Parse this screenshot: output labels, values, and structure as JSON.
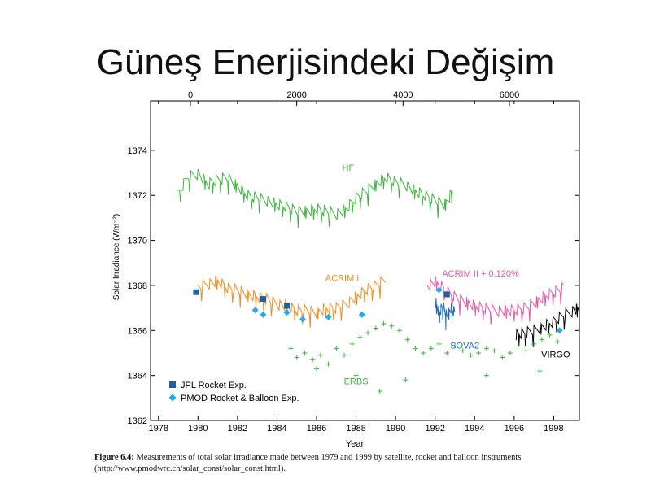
{
  "slide": {
    "title": "Güneş Enerjisindeki Değişim"
  },
  "caption": {
    "label": "Figure 6.4:",
    "text": " Measurements of total solar irradiance made between 1979 and 1999 by satellite, rocket and balloon instruments",
    "source": "(http://www.pmodwrc.ch/solar_const/solar_const.html)."
  },
  "chart_data": {
    "type": "line",
    "title": "",
    "xlabel": "Year",
    "ylabel": "Solar Irradiance (Wm⁻²)",
    "xlim": [
      1977.6,
      1999.3
    ],
    "ylim": [
      1362,
      1376.2
    ],
    "x_ticks": [
      1978,
      1980,
      1982,
      1984,
      1986,
      1988,
      1990,
      1992,
      1994,
      1996,
      1998
    ],
    "y_ticks": [
      1362,
      1364,
      1366,
      1368,
      1370,
      1372,
      1374
    ],
    "top_axis": {
      "ticks": [
        0,
        2000,
        4000,
        6000
      ]
    },
    "grid": false,
    "series": [
      {
        "name": "HF",
        "color": "#3cb43c",
        "kind": "line",
        "x": [
          1978.9,
          1979.5,
          1980.0,
          1980.5,
          1981.0,
          1981.5,
          1982.0,
          1982.5,
          1983.0,
          1983.5,
          1984.0,
          1984.5,
          1985.0,
          1985.5,
          1986.0,
          1986.5,
          1987.0,
          1987.5,
          1988.0,
          1988.5,
          1989.0,
          1989.5,
          1990.0,
          1990.5,
          1991.0,
          1991.5,
          1992.0,
          1992.5,
          1992.9
        ],
        "y": [
          1372.0,
          1372.8,
          1373.0,
          1372.5,
          1372.7,
          1372.8,
          1372.4,
          1372.0,
          1371.9,
          1371.8,
          1371.6,
          1371.5,
          1371.3,
          1371.3,
          1371.4,
          1371.3,
          1371.2,
          1371.4,
          1371.9,
          1372.2,
          1372.5,
          1372.8,
          1372.6,
          1372.5,
          1372.2,
          1372.0,
          1371.8,
          1371.6,
          1372.2
        ]
      },
      {
        "name": "ACRIM I",
        "color": "#f08c1e",
        "kind": "line",
        "x": [
          1980.0,
          1980.5,
          1981.0,
          1981.5,
          1982.0,
          1982.5,
          1983.0,
          1983.5,
          1984.0,
          1984.5,
          1985.0,
          1985.5,
          1986.0,
          1986.5,
          1987.0,
          1987.5,
          1988.0,
          1988.5,
          1989.0,
          1989.5
        ],
        "y": [
          1367.9,
          1368.1,
          1368.2,
          1367.9,
          1367.8,
          1367.6,
          1367.5,
          1367.4,
          1367.2,
          1367.1,
          1366.9,
          1366.9,
          1366.8,
          1367.0,
          1367.0,
          1367.2,
          1367.5,
          1367.8,
          1368.0,
          1368.3
        ]
      },
      {
        "name": "ACRIM II + 0.120%",
        "color": "#e855a8",
        "kind": "line",
        "x": [
          1991.6,
          1992.0,
          1992.5,
          1993.0,
          1993.5,
          1994.0,
          1994.5,
          1995.0,
          1995.5,
          1996.0,
          1996.5,
          1997.0,
          1997.5,
          1998.0,
          1998.5
        ],
        "y": [
          1368.0,
          1368.2,
          1367.8,
          1367.5,
          1367.3,
          1367.1,
          1367.0,
          1366.9,
          1366.9,
          1366.9,
          1367.0,
          1367.2,
          1367.5,
          1367.7,
          1367.9
        ]
      },
      {
        "name": "SOVA2",
        "color": "#1f6fb8",
        "kind": "line",
        "x": [
          1992.0,
          1992.2,
          1992.4,
          1992.6,
          1992.8,
          1993.0
        ],
        "y": [
          1367.3,
          1366.8,
          1367.1,
          1366.6,
          1367.0,
          1366.8
        ]
      },
      {
        "name": "VIRGO",
        "color": "#000000",
        "kind": "line",
        "x": [
          1996.1,
          1996.5,
          1997.0,
          1997.5,
          1998.0,
          1998.5,
          1999.0,
          1999.3
        ],
        "y": [
          1365.8,
          1365.9,
          1366.0,
          1366.2,
          1366.4,
          1366.7,
          1366.9,
          1367.0
        ]
      },
      {
        "name": "ERBS",
        "color": "#3cb43c",
        "kind": "scatter",
        "x": [
          1984.7,
          1985.0,
          1985.4,
          1985.8,
          1986.2,
          1986.6,
          1987.0,
          1987.4,
          1987.8,
          1988.2,
          1988.6,
          1989.0,
          1989.4,
          1989.8,
          1990.2,
          1990.6,
          1991.0,
          1991.4,
          1991.8,
          1992.2,
          1992.6,
          1993.0,
          1993.4,
          1993.8,
          1994.2,
          1994.6,
          1995.0,
          1995.4,
          1995.8,
          1996.2,
          1996.6,
          1997.0,
          1997.4,
          1997.8,
          1998.2,
          1989.2,
          1990.5,
          1988.0,
          1986.0,
          1994.6,
          1997.3
        ],
        "y": [
          1365.2,
          1364.8,
          1365.0,
          1364.7,
          1364.9,
          1364.5,
          1365.2,
          1364.9,
          1365.4,
          1365.7,
          1365.9,
          1366.1,
          1366.3,
          1366.2,
          1366.0,
          1365.6,
          1365.2,
          1365.0,
          1365.2,
          1365.4,
          1365.0,
          1365.3,
          1365.1,
          1364.9,
          1365.0,
          1365.2,
          1365.1,
          1364.8,
          1365.0,
          1365.3,
          1365.1,
          1365.4,
          1365.6,
          1365.8,
          1365.5,
          1363.3,
          1363.8,
          1364.0,
          1364.3,
          1364.0,
          1364.2
        ]
      },
      {
        "name": "JPL Rocket Exp.",
        "color": "#1f5fa8",
        "kind": "marker",
        "marker": "square",
        "x": [
          1979.9,
          1983.3,
          1984.5,
          1992.6
        ],
        "y": [
          1367.7,
          1367.4,
          1367.1,
          1367.6
        ]
      },
      {
        "name": "PMOD Rocket & Balloon Exp.",
        "color": "#22aaee",
        "kind": "marker",
        "marker": "diamond",
        "x": [
          1982.9,
          1983.3,
          1984.5,
          1985.3,
          1986.6,
          1988.3,
          1992.2,
          1998.3
        ],
        "y": [
          1366.9,
          1366.7,
          1366.8,
          1366.5,
          1366.6,
          1366.7,
          1367.8,
          1366.0
        ]
      }
    ],
    "annotations": [
      {
        "text": "HF",
        "x": 1987.6,
        "y": 1373.1,
        "color": "#3cb43c"
      },
      {
        "text": "ACRIM I",
        "x": 1987.3,
        "y": 1368.2,
        "color": "#f08c1e"
      },
      {
        "text": "ACRIM II + 0.120%",
        "x": 1994.3,
        "y": 1368.4,
        "color": "#e855a8"
      },
      {
        "text": "ERBS",
        "x": 1988.0,
        "y": 1363.6,
        "color": "#3cb43c"
      },
      {
        "text": "SOVA2",
        "x": 1993.5,
        "y": 1365.2,
        "color": "#1f6fb8"
      },
      {
        "text": "VIRGO",
        "x": 1998.1,
        "y": 1364.8,
        "color": "#000000"
      }
    ],
    "legend": {
      "placement": "bottom-left",
      "entries": [
        {
          "text": "JPL Rocket Exp.",
          "marker": "square",
          "color": "#1f5fa8"
        },
        {
          "text": "PMOD Rocket & Balloon Exp.",
          "marker": "diamond",
          "color": "#22aaee"
        }
      ]
    }
  }
}
